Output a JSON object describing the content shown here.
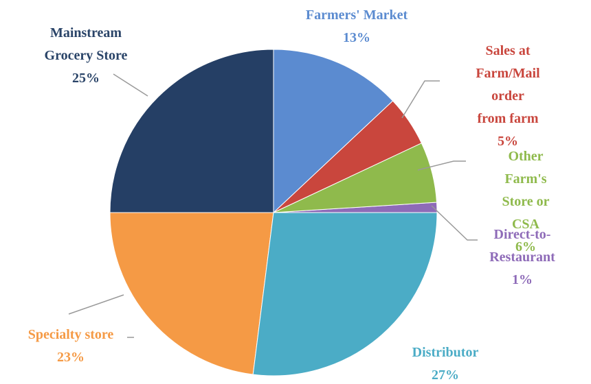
{
  "chart_data": {
    "type": "pie",
    "categories": [
      "Farmers' Market",
      "Sales at\nFarm/Mail  order\nfrom farm",
      "Other Farm's\nStore or CSA",
      "Direct-to-\nRestaurant",
      "Distributor",
      "Specialty store",
      "Mainstream\nGrocery Store"
    ],
    "values": [
      13,
      5,
      6,
      1,
      27,
      23,
      25
    ],
    "value_labels": [
      "13%",
      "5%",
      "6%",
      "1%",
      "27%",
      "23%",
      "25%"
    ],
    "colors": [
      "#5b8bd0",
      "#c9463d",
      "#8fba4c",
      "#8e6bb8",
      "#4bacc6",
      "#f59a45",
      "#253f65"
    ]
  }
}
